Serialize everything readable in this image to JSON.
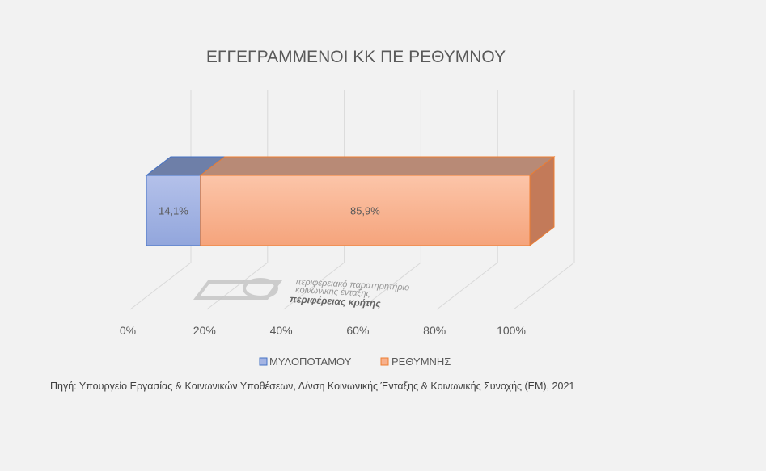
{
  "chart_data": {
    "type": "bar",
    "orientation": "horizontal",
    "stacked": "100%",
    "three_d": true,
    "title": "ΕΓΓΕΓΡΑΜΜΕΝΟΙ ΚΚ ΠΕ ΡΕΘΥΜΝΟΥ",
    "xlim": [
      0,
      100
    ],
    "x_ticks": [
      "0%",
      "20%",
      "40%",
      "60%",
      "80%",
      "100%"
    ],
    "grid": true,
    "legend_position": "bottom",
    "series": [
      {
        "name": "ΜΥΛΟΠΟΤΑΜΟΥ",
        "values": [
          14.1
        ],
        "label": "14,1%",
        "color": "#a4b4e3"
      },
      {
        "name": "ΡΕΘΥΜΝΗΣ",
        "values": [
          85.9
        ],
        "label": "85,9%",
        "color": "#f7b08c"
      }
    ]
  },
  "source_note": "Πηγή: Υπουργείο Εργασίας & Κοινωνικών Υποθέσεων, Δ/νση Κοινωνικής Ένταξης & Κοινωνικής Συνοχής (ΕΜ), 2021",
  "watermark": {
    "line1": "περιφερειακό παρατηρητήριο",
    "line2": "κοινωνικής ένταξης",
    "line3": "περιφέρειας κρήτης"
  }
}
